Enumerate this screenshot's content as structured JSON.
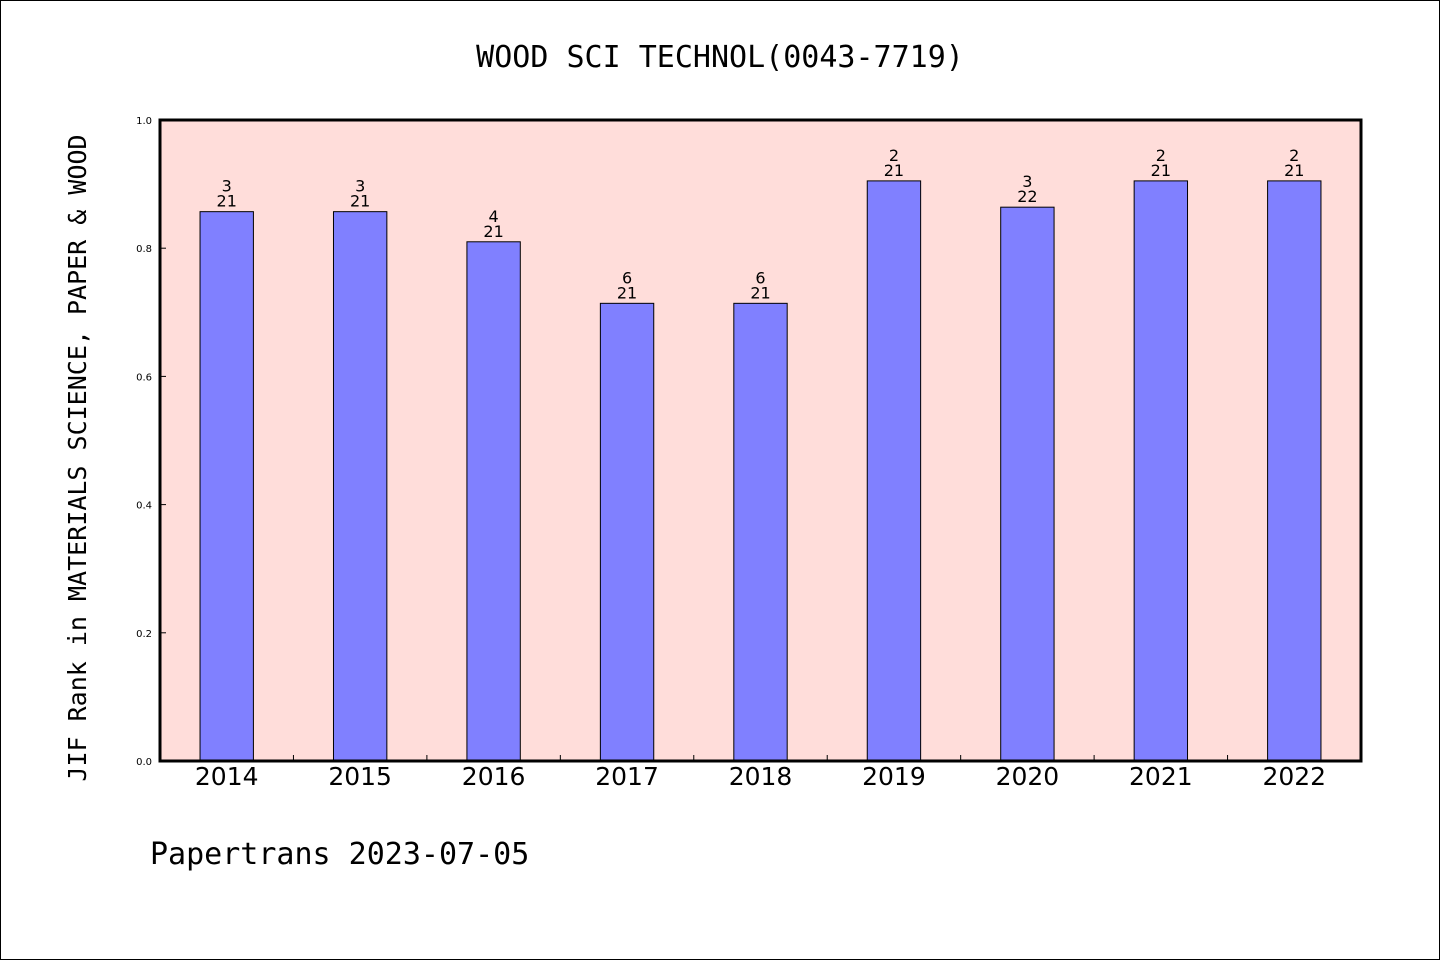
{
  "chart_data": {
    "type": "bar",
    "title": "WOOD SCI TECHNOL(0043-7719)",
    "ylabel": "JIF Rank in MATERIALS SCIENCE, PAPER & WOOD",
    "xlabel": "",
    "ylim": [
      0,
      1.0
    ],
    "yticks": [
      "0.0",
      "0.2",
      "0.4",
      "0.6",
      "0.8",
      "1.0"
    ],
    "categories": [
      "2014",
      "2015",
      "2016",
      "2017",
      "2018",
      "2019",
      "2020",
      "2021",
      "2022"
    ],
    "values": [
      0.857,
      0.857,
      0.81,
      0.714,
      0.714,
      0.905,
      0.864,
      0.905,
      0.905
    ],
    "rank": [
      "3",
      "3",
      "4",
      "6",
      "6",
      "2",
      "3",
      "2",
      "2"
    ],
    "total": [
      "21",
      "21",
      "21",
      "21",
      "21",
      "21",
      "22",
      "21",
      "21"
    ],
    "grid": false,
    "colors": {
      "plot_bg": "#FFDDDA",
      "bar": "#8080FF",
      "bar_edge": "#000000"
    }
  },
  "footer": "Papertrans 2023-07-05"
}
